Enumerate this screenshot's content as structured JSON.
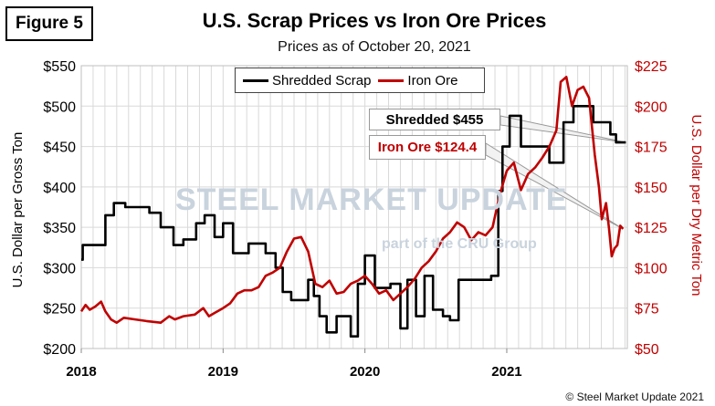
{
  "figure_label": "Figure 5",
  "watermark": {
    "brand": "STEEL MARKET UPDATE",
    "tagline": "part of the CRU Group"
  },
  "copyright": "© Steel Market Update 2021",
  "colors": {
    "scrap": "#000000",
    "iron_ore": "#c00000",
    "grid": "#d9d9d9"
  },
  "chart_data": {
    "type": "line",
    "title": "U.S. Scrap Prices vs Iron Ore Prices",
    "subtitle": "Prices as of October 20, 2021",
    "ylabel": "U.S. Dollar per Gross Ton",
    "y2label": "U.S. Dollar per Dry Metric Ton",
    "ylim": [
      200,
      550
    ],
    "y2lim": [
      50,
      225
    ],
    "xlim": [
      2018.0,
      2021.85
    ],
    "x_ticks": [
      "2018",
      "2019",
      "2020",
      "2021"
    ],
    "y_ticks": [
      "$200",
      "$250",
      "$300",
      "$350",
      "$400",
      "$450",
      "$500",
      "$550"
    ],
    "y2_ticks": [
      "$50",
      "$75",
      "$100",
      "$125",
      "$150",
      "$175",
      "$200",
      "$225"
    ],
    "legend_position": "top-center",
    "grid": true,
    "series": [
      {
        "name": "Shredded Scrap",
        "axis": "left",
        "step": true,
        "points": [
          [
            2018.0,
            310
          ],
          [
            2018.01,
            328
          ],
          [
            2018.17,
            365
          ],
          [
            2018.23,
            380
          ],
          [
            2018.31,
            375
          ],
          [
            2018.48,
            368
          ],
          [
            2018.56,
            350
          ],
          [
            2018.65,
            328
          ],
          [
            2018.72,
            335
          ],
          [
            2018.81,
            355
          ],
          [
            2018.87,
            365
          ],
          [
            2018.94,
            338
          ],
          [
            2019.0,
            355
          ],
          [
            2019.07,
            318
          ],
          [
            2019.18,
            330
          ],
          [
            2019.3,
            318
          ],
          [
            2019.37,
            300
          ],
          [
            2019.42,
            270
          ],
          [
            2019.48,
            260
          ],
          [
            2019.6,
            285
          ],
          [
            2019.64,
            265
          ],
          [
            2019.68,
            240
          ],
          [
            2019.73,
            220
          ],
          [
            2019.8,
            240
          ],
          [
            2019.9,
            215
          ],
          [
            2019.95,
            280
          ],
          [
            2020.0,
            315
          ],
          [
            2020.07,
            275
          ],
          [
            2020.18,
            280
          ],
          [
            2020.25,
            225
          ],
          [
            2020.3,
            285
          ],
          [
            2020.36,
            240
          ],
          [
            2020.42,
            290
          ],
          [
            2020.48,
            248
          ],
          [
            2020.55,
            240
          ],
          [
            2020.6,
            235
          ],
          [
            2020.66,
            285
          ],
          [
            2020.89,
            290
          ],
          [
            2020.94,
            395
          ],
          [
            2020.97,
            450
          ],
          [
            2021.02,
            488
          ],
          [
            2021.1,
            450
          ],
          [
            2021.2,
            450
          ],
          [
            2021.3,
            430
          ],
          [
            2021.4,
            480
          ],
          [
            2021.47,
            500
          ],
          [
            2021.61,
            480
          ],
          [
            2021.73,
            465
          ],
          [
            2021.77,
            455
          ],
          [
            2021.84,
            455
          ]
        ],
        "last_value_label": "Shredded $455"
      },
      {
        "name": "Iron Ore",
        "axis": "right",
        "step": false,
        "points": [
          [
            2018.0,
            73
          ],
          [
            2018.03,
            77
          ],
          [
            2018.06,
            74
          ],
          [
            2018.1,
            76
          ],
          [
            2018.14,
            79
          ],
          [
            2018.17,
            73
          ],
          [
            2018.21,
            68
          ],
          [
            2018.25,
            66
          ],
          [
            2018.3,
            69
          ],
          [
            2018.38,
            68
          ],
          [
            2018.46,
            67
          ],
          [
            2018.56,
            66
          ],
          [
            2018.62,
            70
          ],
          [
            2018.66,
            68
          ],
          [
            2018.72,
            70
          ],
          [
            2018.8,
            71
          ],
          [
            2018.86,
            75
          ],
          [
            2018.9,
            70
          ],
          [
            2018.94,
            72
          ],
          [
            2019.0,
            75
          ],
          [
            2019.05,
            78
          ],
          [
            2019.1,
            84
          ],
          [
            2019.15,
            86
          ],
          [
            2019.2,
            86
          ],
          [
            2019.25,
            88
          ],
          [
            2019.3,
            95
          ],
          [
            2019.35,
            97
          ],
          [
            2019.4,
            100
          ],
          [
            2019.45,
            110
          ],
          [
            2019.5,
            118
          ],
          [
            2019.55,
            119
          ],
          [
            2019.6,
            110
          ],
          [
            2019.65,
            90
          ],
          [
            2019.7,
            88
          ],
          [
            2019.75,
            92
          ],
          [
            2019.8,
            84
          ],
          [
            2019.85,
            85
          ],
          [
            2019.9,
            90
          ],
          [
            2019.95,
            92
          ],
          [
            2020.0,
            95
          ],
          [
            2020.05,
            90
          ],
          [
            2020.1,
            84
          ],
          [
            2020.15,
            86
          ],
          [
            2020.2,
            80
          ],
          [
            2020.25,
            84
          ],
          [
            2020.3,
            88
          ],
          [
            2020.35,
            93
          ],
          [
            2020.4,
            100
          ],
          [
            2020.45,
            104
          ],
          [
            2020.5,
            110
          ],
          [
            2020.55,
            118
          ],
          [
            2020.6,
            122
          ],
          [
            2020.65,
            128
          ],
          [
            2020.7,
            125
          ],
          [
            2020.75,
            117
          ],
          [
            2020.8,
            122
          ],
          [
            2020.85,
            120
          ],
          [
            2020.9,
            125
          ],
          [
            2020.95,
            145
          ],
          [
            2021.0,
            160
          ],
          [
            2021.05,
            165
          ],
          [
            2021.1,
            148
          ],
          [
            2021.15,
            158
          ],
          [
            2021.2,
            162
          ],
          [
            2021.25,
            168
          ],
          [
            2021.3,
            175
          ],
          [
            2021.35,
            185
          ],
          [
            2021.38,
            215
          ],
          [
            2021.42,
            218
          ],
          [
            2021.46,
            200
          ],
          [
            2021.5,
            210
          ],
          [
            2021.54,
            212
          ],
          [
            2021.58,
            205
          ],
          [
            2021.62,
            170
          ],
          [
            2021.65,
            150
          ],
          [
            2021.67,
            130
          ],
          [
            2021.7,
            140
          ],
          [
            2021.72,
            125
          ],
          [
            2021.74,
            107
          ],
          [
            2021.76,
            112
          ],
          [
            2021.78,
            114
          ],
          [
            2021.8,
            126
          ],
          [
            2021.82,
            124
          ]
        ],
        "last_value_label": "Iron Ore $124.4"
      }
    ]
  }
}
